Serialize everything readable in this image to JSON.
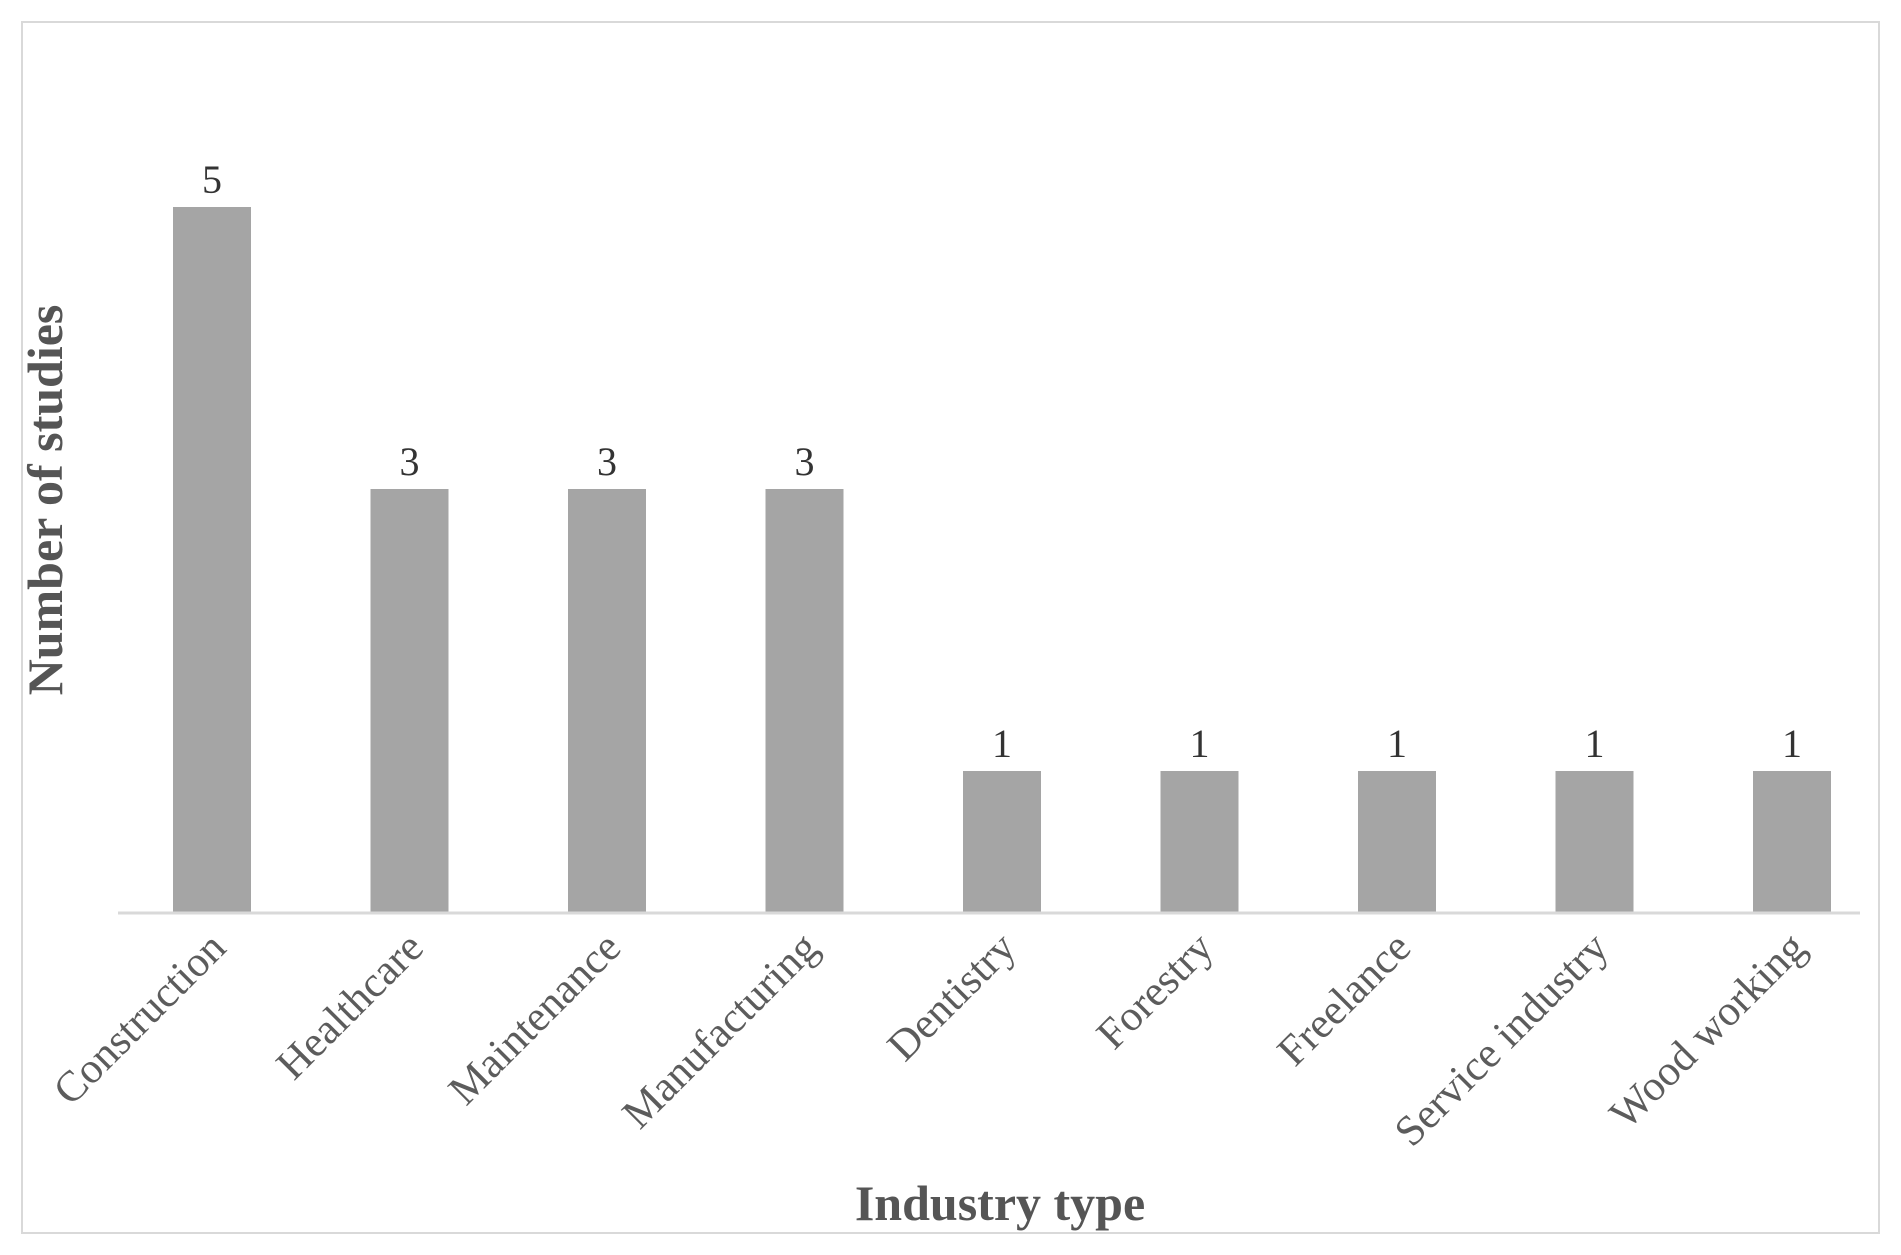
{
  "chart_data": {
    "type": "bar",
    "categories": [
      "Construction",
      "Healthcare",
      "Maintenance",
      "Manufacturing",
      "Dentistry",
      "Forestry",
      "Freelance",
      "Service industry",
      "Wood working"
    ],
    "values": [
      5,
      3,
      3,
      3,
      1,
      1,
      1,
      1,
      1
    ],
    "xlabel": "Industry type",
    "ylabel": "Number of studies",
    "ylim": [
      0,
      5
    ],
    "grid": false,
    "data_labels": true,
    "bar_color": "#a5a5a5",
    "axis_color": "#d9d9d9",
    "frame_color": "#d9d9d9"
  }
}
